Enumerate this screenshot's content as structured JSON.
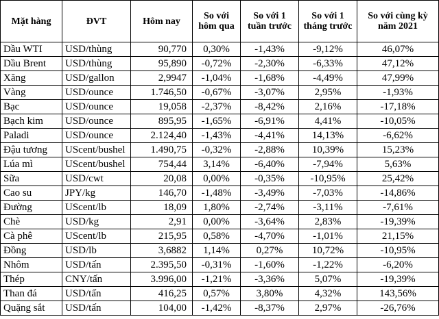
{
  "table": {
    "header": [
      "Mặt hàng",
      "ĐVT",
      "Hôm nay",
      "So với hôm qua",
      "So với 1 tuần trước",
      "So với 1 tháng trước",
      "So với cùng kỳ năm 2021"
    ],
    "rows": [
      [
        "Dầu WTI",
        "USD/thùng",
        "90,770",
        "0,30%",
        "-1,43%",
        "-9,12%",
        "46,07%"
      ],
      [
        "Dầu Brent",
        "USD/thùng",
        "95,890",
        "-0,72%",
        "-2,30%",
        "-6,33%",
        "47,12%"
      ],
      [
        "Xăng",
        "USD/gallon",
        "2,9947",
        "-1,04%",
        "-1,68%",
        "-4,49%",
        "47,99%"
      ],
      [
        "Vàng",
        "USD/ounce",
        "1.746,50",
        "-0,67%",
        "-3,07%",
        "2,95%",
        "-1,93%"
      ],
      [
        "Bạc",
        "USD/ounce",
        "19,058",
        "-2,37%",
        "-8,42%",
        "2,16%",
        "-17,18%"
      ],
      [
        "Bạch kim",
        "USD/ounce",
        "895,95",
        "-1,65%",
        "-6,91%",
        "4,41%",
        "-10,05%"
      ],
      [
        "Paladi",
        "USD/ounce",
        "2.124,40",
        "-1,43%",
        "-4,41%",
        "14,13%",
        "-6,62%"
      ],
      [
        "Đậu tương",
        "UScent/bushel",
        "1.490,75",
        "-0,32%",
        "-2,88%",
        "10,39%",
        "15,23%"
      ],
      [
        "Lúa mì",
        "UScent/bushel",
        "754,44",
        "3,14%",
        "-6,40%",
        "-7,94%",
        "5,63%"
      ],
      [
        "Sữa",
        "USD/cwt",
        "20,08",
        "0,00%",
        "-0,35%",
        "-10,95%",
        "25,42%"
      ],
      [
        "Cao su",
        "JPY/kg",
        "146,70",
        "-1,48%",
        "-3,49%",
        "-7,03%",
        "-14,86%"
      ],
      [
        "Đường",
        "UScent/lb",
        "18,09",
        "1,80%",
        "-2,74%",
        "-3,11%",
        "-7,61%"
      ],
      [
        "Chè",
        "USD/kg",
        "2,91",
        "0,00%",
        "-3,64%",
        "2,83%",
        "-19,39%"
      ],
      [
        "Cà phê",
        "UScent/lb",
        "215,95",
        "0,58%",
        "-4,70%",
        "-1,01%",
        "21,15%"
      ],
      [
        "Đồng",
        "USD/lb",
        "3,6882",
        "1,14%",
        "0,27%",
        "10,72%",
        "-10,95%"
      ],
      [
        "Nhôm",
        "USD/tấn",
        "2.395,50",
        "-0,31%",
        "-1,60%",
        "-1,22%",
        "-6,20%"
      ],
      [
        "Thép",
        "CNY/tấn",
        "3.996,00",
        "-1,21%",
        "-3,36%",
        "5,07%",
        "-19,39%"
      ],
      [
        "Than đá",
        "USD/tấn",
        "416,25",
        "0,57%",
        "3,80%",
        "4,32%",
        "143,56%"
      ],
      [
        "Quặng sắt",
        "USD/tấn",
        "104,00",
        "-1,42%",
        "-8,37%",
        "2,97%",
        "-26,76%"
      ]
    ]
  }
}
